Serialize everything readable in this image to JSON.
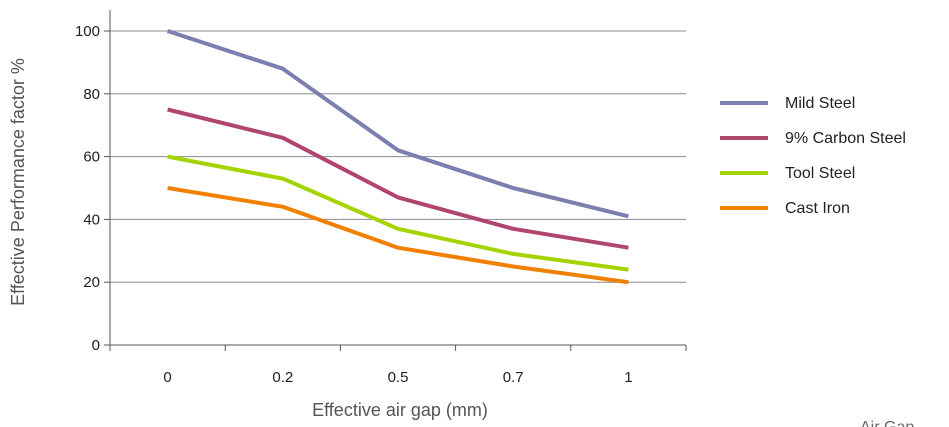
{
  "chart_data": {
    "type": "line",
    "categories": [
      "0",
      "0.2",
      "0.5",
      "0.7",
      "1"
    ],
    "series": [
      {
        "name": "Mild Steel",
        "values": [
          100,
          88,
          62,
          50,
          41
        ],
        "color": "#7a7fb0"
      },
      {
        "name": "9% Carbon Steel",
        "values": [
          75,
          66,
          47,
          37,
          31
        ],
        "color": "#b0456f"
      },
      {
        "name": "Tool Steel",
        "values": [
          60,
          53,
          37,
          29,
          24
        ],
        "color": "#a3d400"
      },
      {
        "name": "Cast Iron",
        "values": [
          50,
          44,
          31,
          25,
          20
        ],
        "color": "#f08000"
      }
    ],
    "xlabel": "Effective air gap (mm)",
    "ylabel": "Effective Performance factor %",
    "ylim": [
      0,
      100
    ],
    "yticks": [
      0,
      20,
      40,
      60,
      80,
      100
    ],
    "grid": true,
    "legend": "right"
  },
  "footer_text": "Air Gap"
}
